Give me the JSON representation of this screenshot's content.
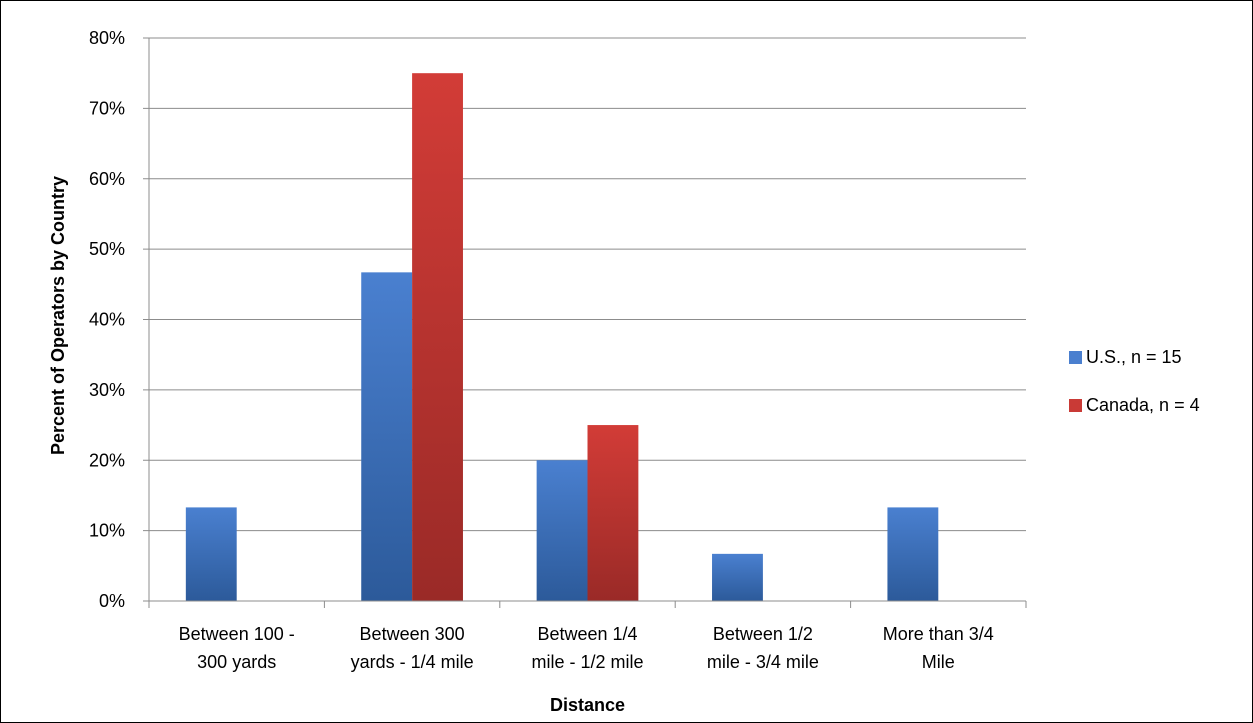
{
  "chart_data": {
    "type": "bar",
    "title": "",
    "xlabel": "Distance",
    "ylabel": "Percent of Operators by Country",
    "ylim": [
      0,
      0.8
    ],
    "y_ticks": [
      "0%",
      "10%",
      "20%",
      "30%",
      "40%",
      "50%",
      "60%",
      "70%",
      "80%"
    ],
    "categories": [
      [
        "Between 100 -",
        "300 yards"
      ],
      [
        "Between 300",
        "yards - 1/4 mile"
      ],
      [
        "Between 1/4",
        "mile - 1/2 mile"
      ],
      [
        "Between 1/2",
        "mile - 3/4 mile"
      ],
      [
        "More than 3/4",
        "Mile"
      ]
    ],
    "series": [
      {
        "name": "U.S., n = 15",
        "color": "#4a7fcf",
        "values": [
          0.133,
          0.467,
          0.2,
          0.067,
          0.133
        ]
      },
      {
        "name": "Canada, n = 4",
        "color": "#c93a36",
        "values": [
          0,
          0.75,
          0.25,
          0,
          0
        ]
      }
    ],
    "grid": true,
    "legend_position": "right"
  }
}
